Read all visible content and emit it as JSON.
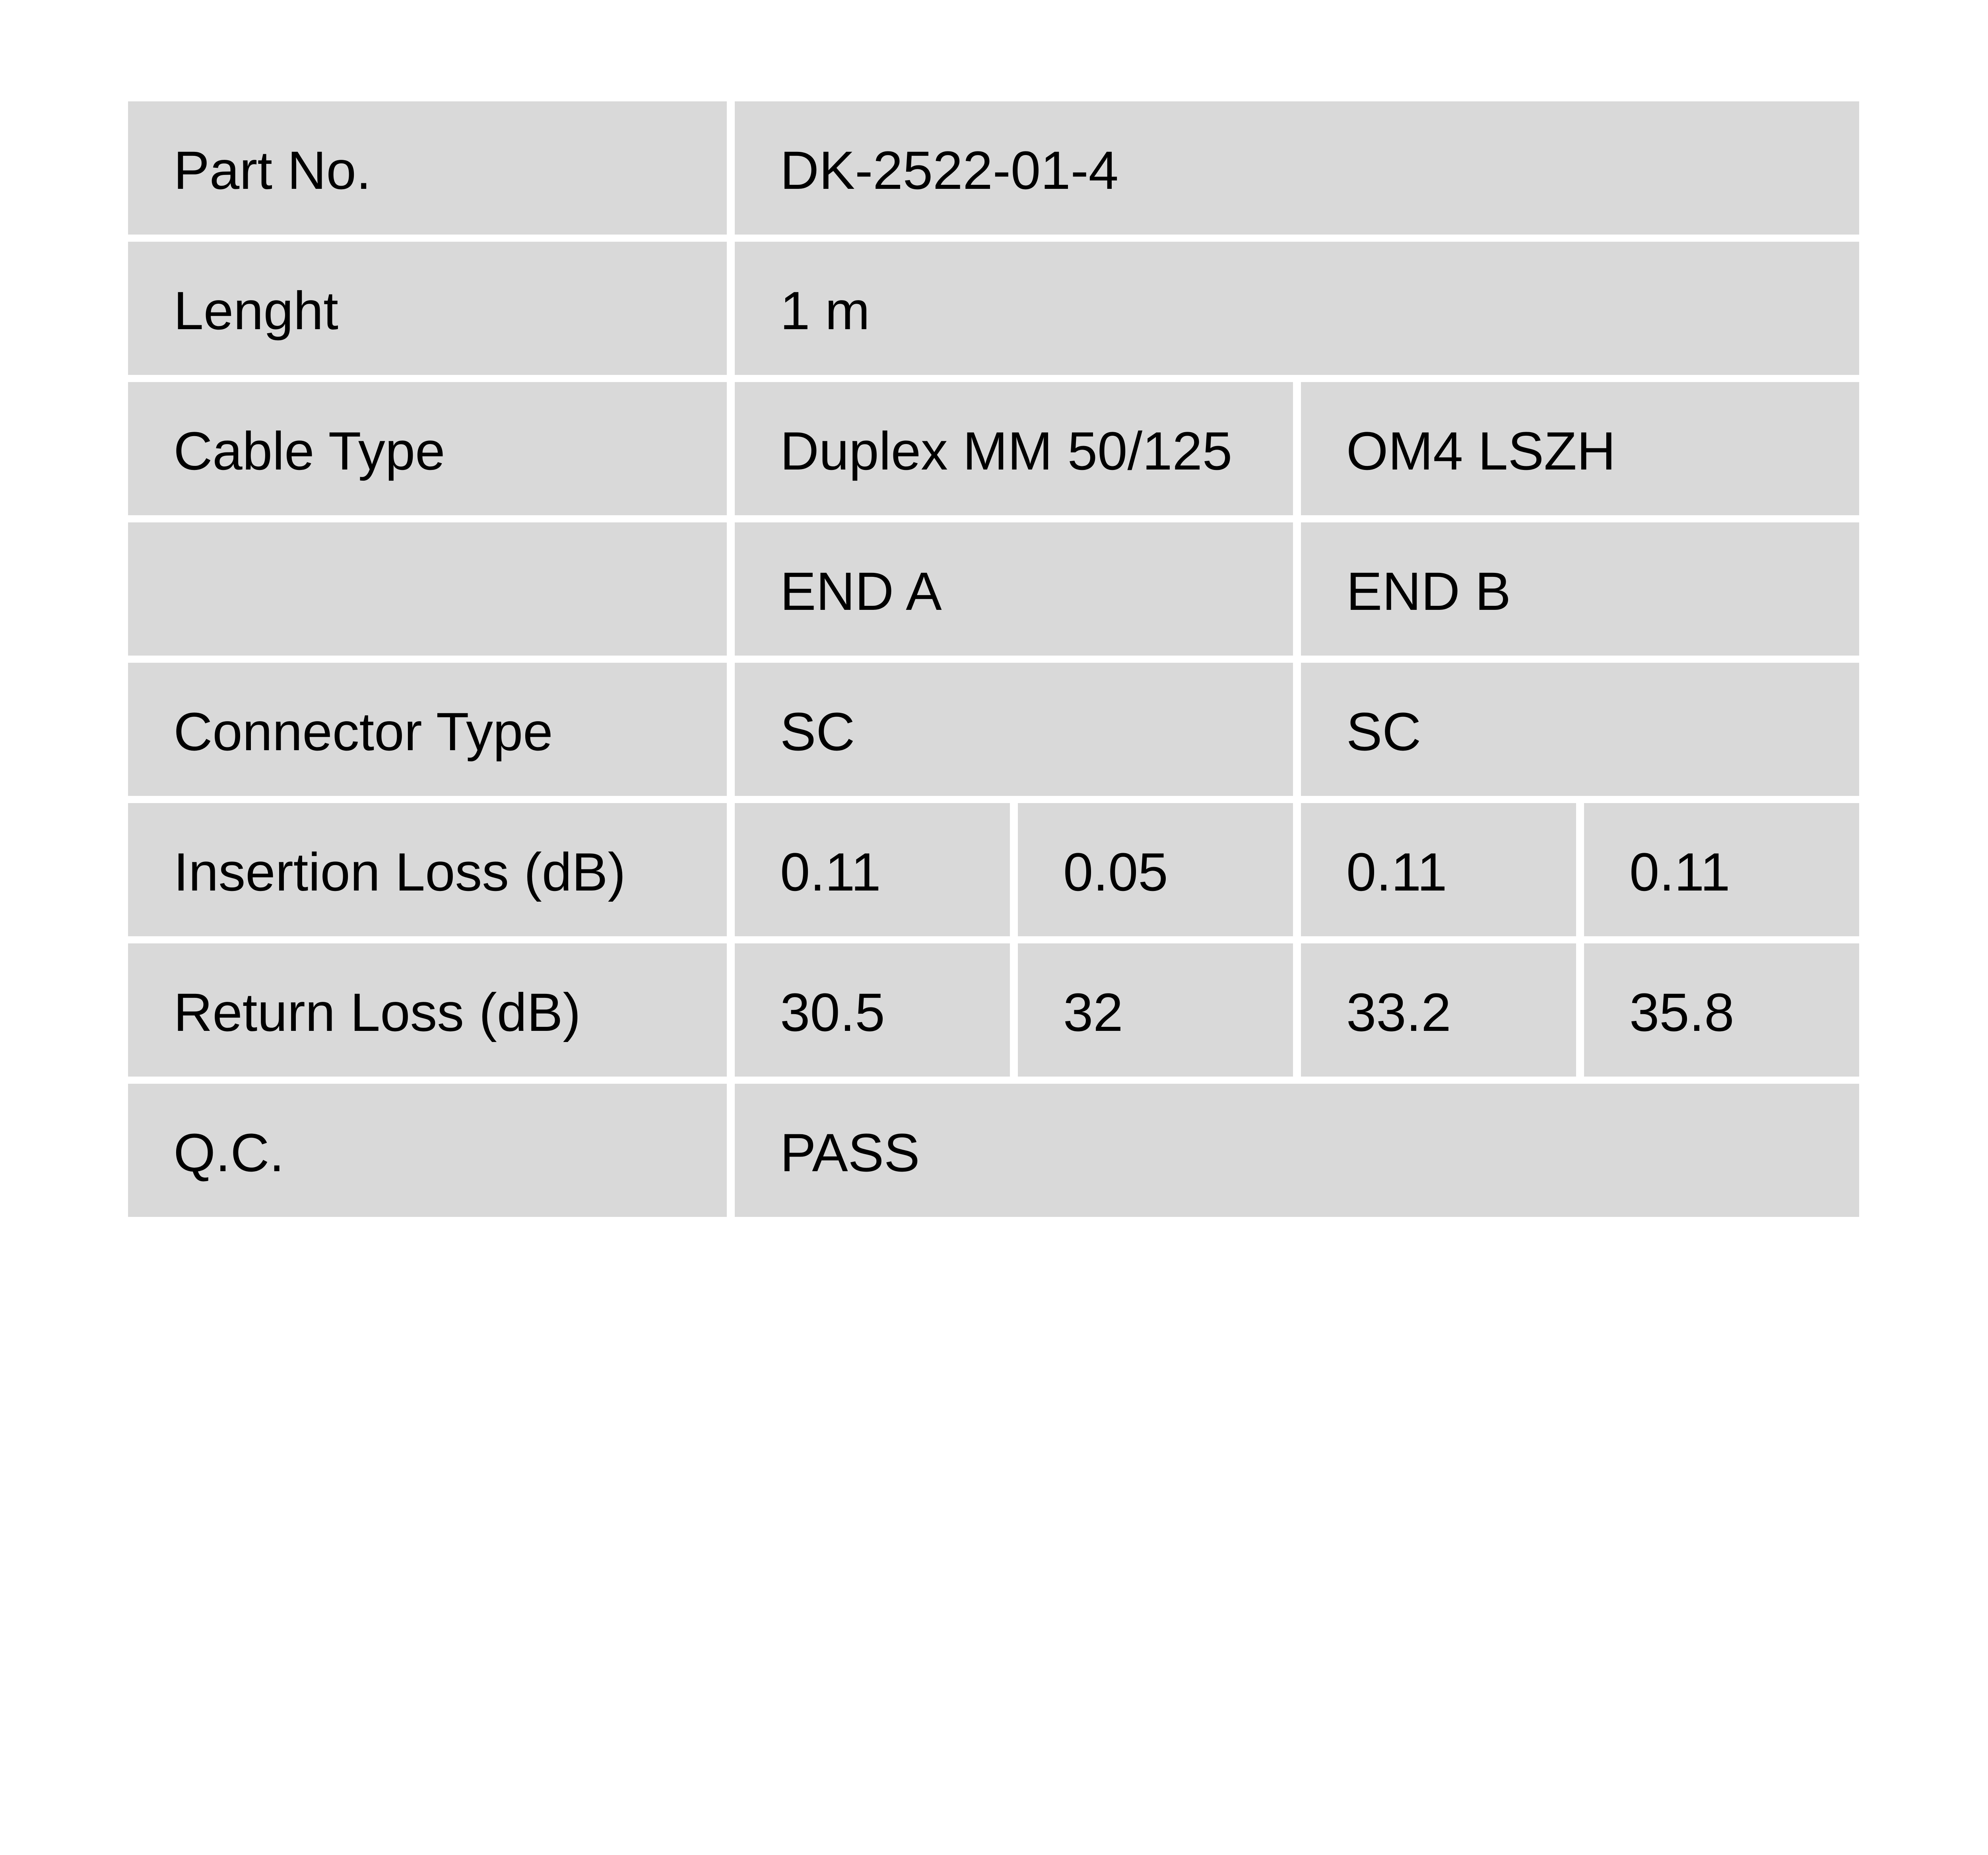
{
  "document": {
    "type": "fiber-patch-cord-test-certificate",
    "colors": {
      "cell_background": "#d9d9d9",
      "page_background": "#ffffff",
      "text": "#000000"
    },
    "table": {
      "part_no": {
        "label": "Part No.",
        "value": "DK-2522-01-4"
      },
      "length": {
        "label": "Lenght",
        "value": "1 m"
      },
      "cable_type": {
        "label": "Cable Type",
        "end_a": "Duplex MM 50/125",
        "end_b": "OM4 LSZH"
      },
      "ends_header": {
        "label": "",
        "end_a": "END A",
        "end_b": "END B"
      },
      "connector_type": {
        "label": "Connector Type",
        "end_a": "SC",
        "end_b": "SC"
      },
      "insertion_loss": {
        "label": "Insertion Loss (dB)",
        "end_a_1": "0.11",
        "end_a_2": "0.05",
        "end_b_1": "0.11",
        "end_b_2": "0.11"
      },
      "return_loss": {
        "label": "Return Loss (dB)",
        "end_a_1": "30.5",
        "end_a_2": "32",
        "end_b_1": "33.2",
        "end_b_2": "35.8"
      },
      "qc": {
        "label": "Q.C.",
        "value": "PASS"
      }
    }
  }
}
